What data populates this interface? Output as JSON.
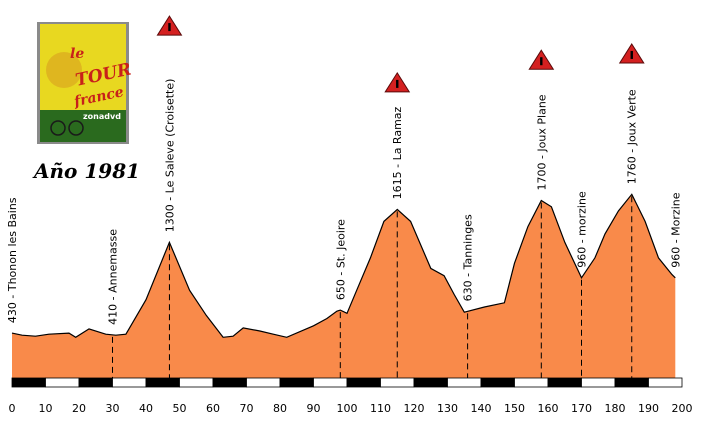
{
  "caption": "Año 1981",
  "dvd": {
    "line1": "le",
    "line2": "TOUR",
    "line3": "france",
    "site": "zonadvd",
    "colors": {
      "cover": "#e8d820",
      "dark": "#2a6a1e",
      "red": "#c8201a"
    }
  },
  "colors": {
    "profile_fill": "#f98a4a",
    "profile_line": "#000000",
    "climb_marker": "#d42020",
    "ruler_dark": "#000000",
    "ruler_light": "#ffffff"
  },
  "chart_data": {
    "type": "area",
    "title": "",
    "xlabel": "",
    "ylabel": "",
    "xlim": [
      0,
      200
    ],
    "ylim": [
      0,
      2050
    ],
    "x_ticks": [
      "0",
      "10",
      "20",
      "30",
      "40",
      "50",
      "60",
      "70",
      "80",
      "90",
      "100",
      "110",
      "120",
      "130",
      "140",
      "150",
      "160",
      "170",
      "180",
      "190",
      "200"
    ],
    "profile": [
      [
        0,
        430
      ],
      [
        3,
        410
      ],
      [
        7,
        400
      ],
      [
        11,
        420
      ],
      [
        17,
        430
      ],
      [
        19,
        390
      ],
      [
        23,
        470
      ],
      [
        28,
        420
      ],
      [
        31,
        410
      ],
      [
        34,
        420
      ],
      [
        40,
        750
      ],
      [
        47,
        1300
      ],
      [
        53,
        840
      ],
      [
        58,
        600
      ],
      [
        63,
        390
      ],
      [
        66,
        400
      ],
      [
        69,
        480
      ],
      [
        74,
        450
      ],
      [
        78,
        420
      ],
      [
        82,
        390
      ],
      [
        90,
        500
      ],
      [
        94,
        570
      ],
      [
        97,
        640
      ],
      [
        98,
        650
      ],
      [
        100,
        620
      ],
      [
        103,
        850
      ],
      [
        107,
        1150
      ],
      [
        111,
        1500
      ],
      [
        115,
        1615
      ],
      [
        119,
        1500
      ],
      [
        125,
        1050
      ],
      [
        129,
        980
      ],
      [
        132,
        800
      ],
      [
        135,
        630
      ],
      [
        141,
        680
      ],
      [
        147,
        720
      ],
      [
        150,
        1100
      ],
      [
        154,
        1450
      ],
      [
        158,
        1700
      ],
      [
        161,
        1640
      ],
      [
        165,
        1300
      ],
      [
        170,
        960
      ],
      [
        174,
        1150
      ],
      [
        177,
        1380
      ],
      [
        181,
        1600
      ],
      [
        185,
        1760
      ],
      [
        189,
        1500
      ],
      [
        193,
        1150
      ],
      [
        197,
        990
      ],
      [
        198,
        960
      ]
    ],
    "waypoints": [
      {
        "km": 0,
        "alt": 430,
        "label": "430 - Thonon les Bains"
      },
      {
        "km": 30,
        "alt": 410,
        "label": "410 - Annemasse"
      },
      {
        "km": 47,
        "alt": 1300,
        "label": "1300 - Le Saleve (Croisette)",
        "climb": true
      },
      {
        "km": 98,
        "alt": 650,
        "label": "650 - St. Jeoire"
      },
      {
        "km": 115,
        "alt": 1615,
        "label": "1615 - La Ramaz",
        "climb": true
      },
      {
        "km": 136,
        "alt": 630,
        "label": "630 - Tanninges"
      },
      {
        "km": 158,
        "alt": 1700,
        "label": "1700 - Joux Plane",
        "climb": true
      },
      {
        "km": 170,
        "alt": 960,
        "label": "960 - morzine"
      },
      {
        "km": 185,
        "alt": 1760,
        "label": "1760 - Joux Verte",
        "climb": true
      },
      {
        "km": 198,
        "alt": 960,
        "label": "960 - Morzine"
      }
    ],
    "grid": false
  }
}
